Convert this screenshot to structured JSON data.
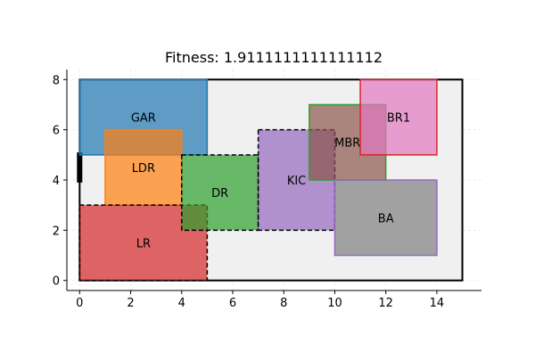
{
  "chart_data": {
    "type": "floor-plan",
    "title": "Fitness: 1.9111111111111112",
    "xlim": [
      -0.5,
      15.75
    ],
    "ylim": [
      -0.4,
      8.4
    ],
    "xticks": [
      0,
      2,
      4,
      6,
      8,
      10,
      12,
      14
    ],
    "yticks": [
      0,
      2,
      4,
      6,
      8
    ],
    "grid": true,
    "boundary": {
      "x": [
        0,
        15
      ],
      "y": [
        0,
        8
      ],
      "fill": "#f0f0f0",
      "edge": "#000000"
    },
    "entrance": {
      "x": 0,
      "y": [
        3.9,
        5.1
      ],
      "color": "#000000"
    },
    "rooms": [
      {
        "label": "GAR",
        "x": [
          0,
          5
        ],
        "y": [
          5,
          8
        ],
        "fill": "#1f77b4",
        "edge": "#1f77b4",
        "dashed": false
      },
      {
        "label": "LDR",
        "x": [
          1,
          4
        ],
        "y": [
          3,
          6
        ],
        "fill": "#ff7f0e",
        "edge": "#ff7f0e",
        "dashed": false
      },
      {
        "label": "LR",
        "x": [
          0,
          5
        ],
        "y": [
          0,
          3
        ],
        "fill": "#d62728",
        "edge": "#000000",
        "dashed": true
      },
      {
        "label": "DR",
        "x": [
          4,
          7
        ],
        "y": [
          2,
          5
        ],
        "fill": "#2ca02c",
        "edge": "#000000",
        "dashed": true
      },
      {
        "label": "KIC",
        "x": [
          7,
          10
        ],
        "y": [
          2,
          6
        ],
        "fill": "#9467bd",
        "edge": "#000000",
        "dashed": true
      },
      {
        "label": "MBR",
        "x": [
          9,
          12
        ],
        "y": [
          4,
          7
        ],
        "fill": "#8c564b",
        "edge": "#2ca02c",
        "dashed": false
      },
      {
        "label": "BR1",
        "x": [
          11,
          14
        ],
        "y": [
          5,
          8
        ],
        "fill": "#e377c2",
        "edge": "#d62728",
        "dashed": false
      },
      {
        "label": "BA",
        "x": [
          10,
          14
        ],
        "y": [
          1,
          4
        ],
        "fill": "#7f7f7f",
        "edge": "#9467bd",
        "dashed": false
      }
    ]
  }
}
